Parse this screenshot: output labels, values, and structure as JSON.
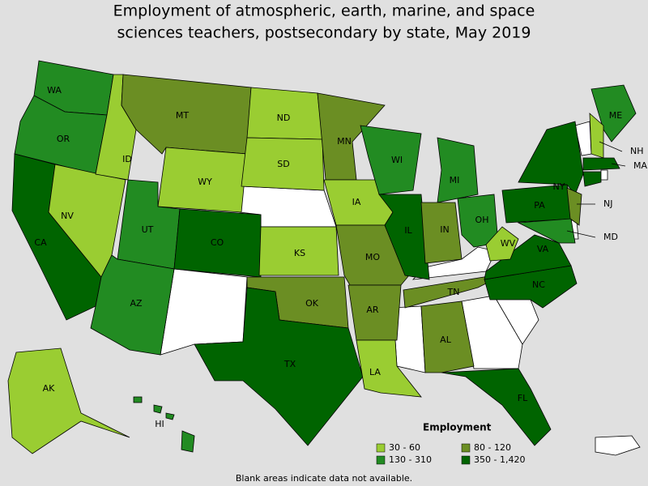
{
  "title": [
    "Employment of atmospheric, earth, marine, and space",
    "sciences teachers, postsecondary by state, May 2019"
  ],
  "legend": {
    "title": "Employment",
    "items": [
      {
        "label": "30 - 60",
        "color": "#9acd32"
      },
      {
        "label": "80 - 120",
        "color": "#6b8e23"
      },
      {
        "label": "130 - 310",
        "color": "#228b22"
      },
      {
        "label": "350 - 1,420",
        "color": "#006400"
      }
    ]
  },
  "states": [
    {
      "label": "WA",
      "range": "130 - 310"
    },
    {
      "label": "OR",
      "range": "130 - 310"
    },
    {
      "label": "CA",
      "range": "350 - 1,420"
    },
    {
      "label": "NV",
      "range": "30 - 60"
    },
    {
      "label": "ID",
      "range": "30 - 60"
    },
    {
      "label": "MT",
      "range": "80 - 120"
    },
    {
      "label": "WY",
      "range": "30 - 60"
    },
    {
      "label": "UT",
      "range": "130 - 310"
    },
    {
      "label": "AZ",
      "range": "130 - 310"
    },
    {
      "label": "CO",
      "range": "350 - 1,420"
    },
    {
      "label": "ND",
      "range": "30 - 60"
    },
    {
      "label": "SD",
      "range": "30 - 60"
    },
    {
      "label": "KS",
      "range": "30 - 60"
    },
    {
      "label": "OK",
      "range": "80 - 120"
    },
    {
      "label": "TX",
      "range": "350 - 1,420"
    },
    {
      "label": "MN",
      "range": "80 - 120"
    },
    {
      "label": "IA",
      "range": "30 - 60"
    },
    {
      "label": "MO",
      "range": "80 - 120"
    },
    {
      "label": "AR",
      "range": "80 - 120"
    },
    {
      "label": "LA",
      "range": "30 - 60"
    },
    {
      "label": "WI",
      "range": "130 - 310"
    },
    {
      "label": "IL",
      "range": "350 - 1,420"
    },
    {
      "label": "MI",
      "range": "130 - 310"
    },
    {
      "label": "IN",
      "range": "80 - 120"
    },
    {
      "label": "OH",
      "range": "130 - 310"
    },
    {
      "label": "TN",
      "range": "80 - 120"
    },
    {
      "label": "AL",
      "range": "80 - 120"
    },
    {
      "label": "FL",
      "range": "350 - 1,420"
    },
    {
      "label": "NC",
      "range": "350 - 1,420"
    },
    {
      "label": "VA",
      "range": "350 - 1,420"
    },
    {
      "label": "WV",
      "range": "30 - 60"
    },
    {
      "label": "PA",
      "range": "350 - 1,420"
    },
    {
      "label": "NY",
      "range": "350 - 1,420"
    },
    {
      "label": "MD",
      "range": "130 - 310"
    },
    {
      "label": "NJ",
      "range": "80 - 120"
    },
    {
      "label": "ME",
      "range": "130 - 310"
    },
    {
      "label": "NH",
      "range": "30 - 60"
    },
    {
      "label": "MA",
      "range": "350 - 1,420"
    },
    {
      "label": "AK",
      "range": "30 - 60"
    },
    {
      "label": "HI",
      "range": "130 - 310"
    }
  ],
  "note": "Blank areas indicate data not available."
}
